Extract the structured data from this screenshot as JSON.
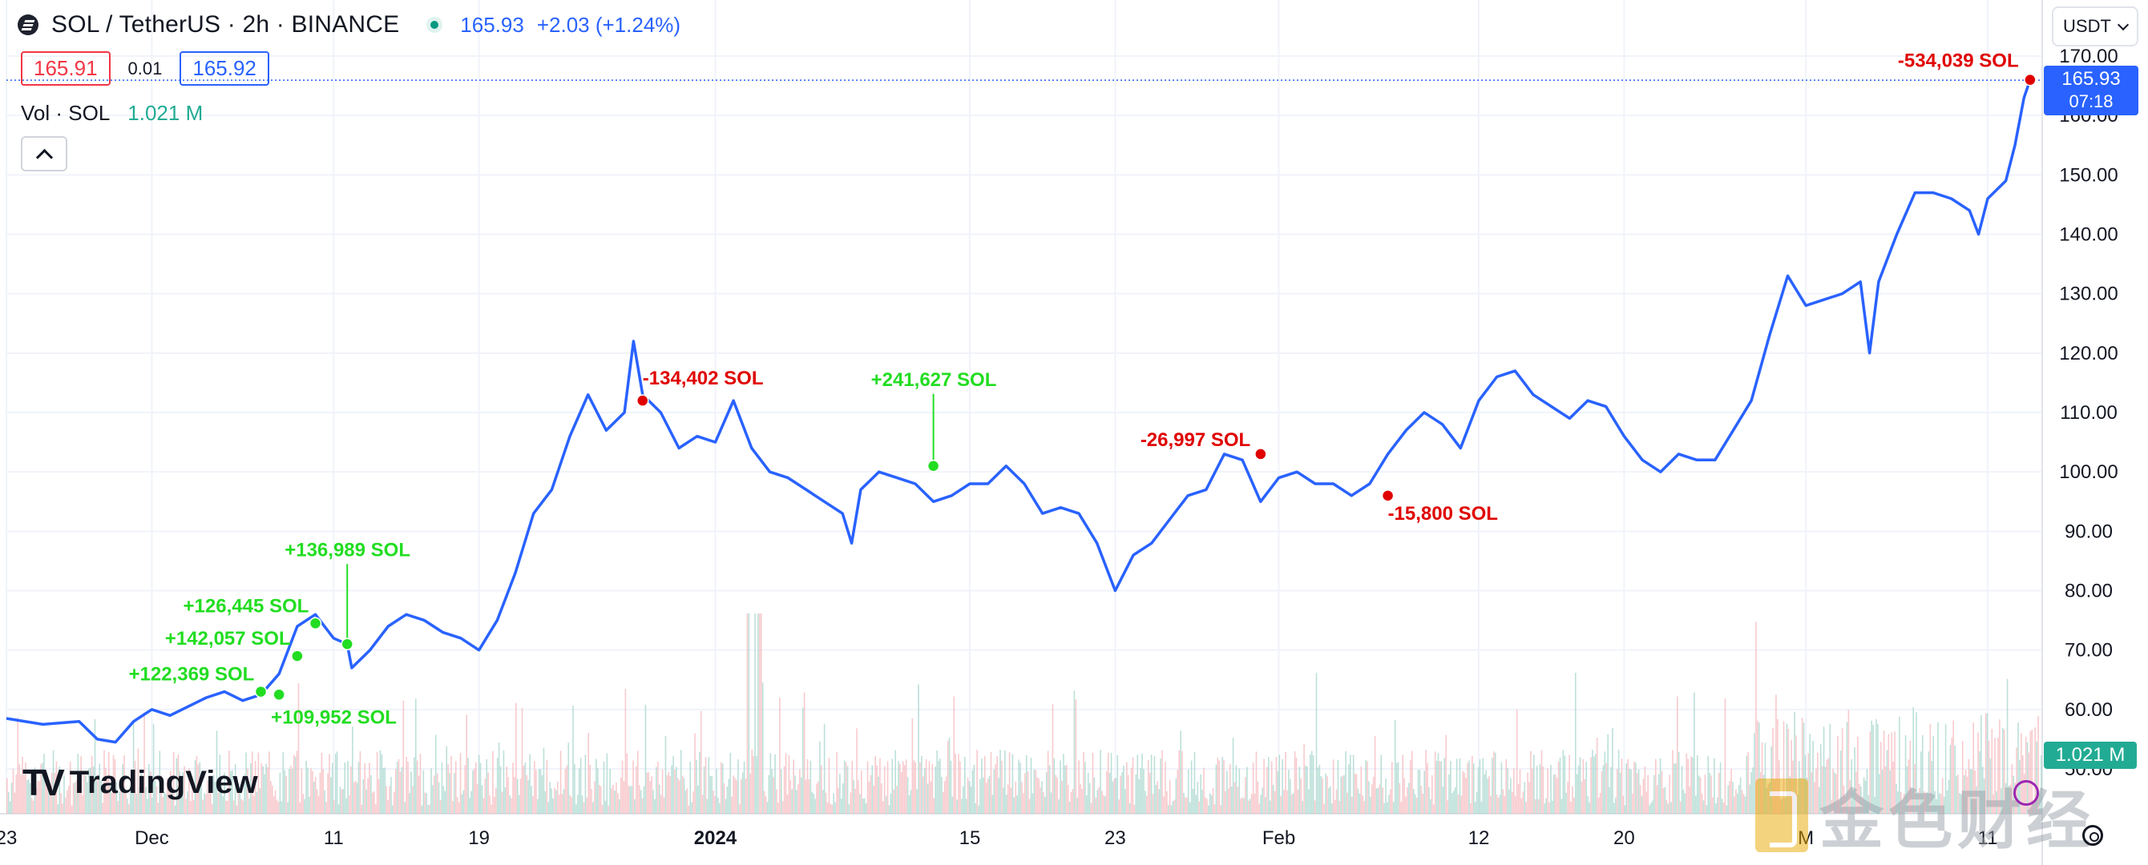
{
  "header": {
    "title": "SOL / TetherUS · 2h · BINANCE",
    "price": "165.93",
    "change": "+2.03 (+1.24%)"
  },
  "quote": {
    "bid": "165.91",
    "spread": "0.01",
    "ask": "165.92"
  },
  "volume_legend": {
    "label": "Vol · SOL",
    "value": "1.021 M"
  },
  "currency": "USDT",
  "price_tag": {
    "price": "165.93",
    "countdown": "07:18"
  },
  "volume_tag": "1.021 M",
  "logo_text": "TradingView",
  "watermark": "金色财经",
  "colors": {
    "line": "#2962ff",
    "buy": "#22dd22",
    "sell": "#e00000",
    "vol_up": "#22ab94",
    "vol_down": "#f23645"
  },
  "chart_data": {
    "type": "line",
    "x_unit": "date",
    "y_axis_ticks": [
      "170.00",
      "160.00",
      "150.00",
      "140.00",
      "130.00",
      "120.00",
      "110.00",
      "100.00",
      "90.00",
      "80.00",
      "70.00",
      "60.00",
      "50.00"
    ],
    "ylim": [
      50,
      170
    ],
    "x_axis_ticks": [
      {
        "label": "23",
        "x": "2023-11-23"
      },
      {
        "label": "Dec",
        "x": "2023-12-01"
      },
      {
        "label": "11",
        "x": "2023-12-11"
      },
      {
        "label": "19",
        "x": "2023-12-19"
      },
      {
        "label": "2024",
        "x": "2024-01-01",
        "bold": true
      },
      {
        "label": "15",
        "x": "2024-01-15"
      },
      {
        "label": "23",
        "x": "2024-01-23"
      },
      {
        "label": "Feb",
        "x": "2024-02-01"
      },
      {
        "label": "12",
        "x": "2024-02-12"
      },
      {
        "label": "20",
        "x": "2024-02-20"
      },
      {
        "label": "M",
        "x": "2024-03-01"
      },
      {
        "label": "11",
        "x": "2024-03-11"
      }
    ],
    "xlim": [
      "2023-11-23",
      "2024-03-14"
    ],
    "series": [
      {
        "values": [
          [
            "2023-11-23",
            58.5
          ],
          [
            "2023-11-25",
            57.5
          ],
          [
            "2023-11-27",
            58
          ],
          [
            "2023-11-28",
            55
          ],
          [
            "2023-11-29",
            54.5
          ],
          [
            "2023-11-30",
            58
          ],
          [
            "2023-12-01",
            60
          ],
          [
            "2023-12-02",
            59
          ],
          [
            "2023-12-04",
            62
          ],
          [
            "2023-12-05",
            63
          ],
          [
            "2023-12-06",
            61.5
          ],
          [
            "2023-12-07",
            62.5
          ],
          [
            "2023-12-08",
            66
          ],
          [
            "2023-12-09",
            74
          ],
          [
            "2023-12-10",
            76
          ],
          [
            "2023-12-11",
            72
          ],
          [
            "2023-12-11T18",
            71
          ],
          [
            "2023-12-12",
            67
          ],
          [
            "2023-12-13",
            70
          ],
          [
            "2023-12-14",
            74
          ],
          [
            "2023-12-15",
            76
          ],
          [
            "2023-12-16",
            75
          ],
          [
            "2023-12-17",
            73
          ],
          [
            "2023-12-18",
            72
          ],
          [
            "2023-12-19",
            70
          ],
          [
            "2023-12-20",
            75
          ],
          [
            "2023-12-21",
            83
          ],
          [
            "2023-12-22",
            93
          ],
          [
            "2023-12-23",
            97
          ],
          [
            "2023-12-24",
            106
          ],
          [
            "2023-12-25",
            113
          ],
          [
            "2023-12-26",
            107
          ],
          [
            "2023-12-27",
            110
          ],
          [
            "2023-12-27T12",
            122
          ],
          [
            "2023-12-28",
            113
          ],
          [
            "2023-12-29",
            110
          ],
          [
            "2023-12-30",
            104
          ],
          [
            "2023-12-31",
            106
          ],
          [
            "2024-01-01",
            105
          ],
          [
            "2024-01-02",
            112
          ],
          [
            "2024-01-03",
            104
          ],
          [
            "2024-01-04",
            100
          ],
          [
            "2024-01-05",
            99
          ],
          [
            "2024-01-06",
            97
          ],
          [
            "2024-01-07",
            95
          ],
          [
            "2024-01-08",
            93
          ],
          [
            "2024-01-08T12",
            88
          ],
          [
            "2024-01-09",
            97
          ],
          [
            "2024-01-10",
            100
          ],
          [
            "2024-01-11",
            99
          ],
          [
            "2024-01-12",
            98
          ],
          [
            "2024-01-13",
            95
          ],
          [
            "2024-01-14",
            96
          ],
          [
            "2024-01-15",
            98
          ],
          [
            "2024-01-16",
            98
          ],
          [
            "2024-01-17",
            101
          ],
          [
            "2024-01-18",
            98
          ],
          [
            "2024-01-19",
            93
          ],
          [
            "2024-01-20",
            94
          ],
          [
            "2024-01-21",
            93
          ],
          [
            "2024-01-22",
            88
          ],
          [
            "2024-01-23",
            80
          ],
          [
            "2024-01-24",
            86
          ],
          [
            "2024-01-25",
            88
          ],
          [
            "2024-01-26",
            92
          ],
          [
            "2024-01-27",
            96
          ],
          [
            "2024-01-28",
            97
          ],
          [
            "2024-01-29",
            103
          ],
          [
            "2024-01-30",
            102
          ],
          [
            "2024-01-31",
            95
          ],
          [
            "2024-02-01",
            99
          ],
          [
            "2024-02-02",
            100
          ],
          [
            "2024-02-03",
            98
          ],
          [
            "2024-02-04",
            98
          ],
          [
            "2024-02-05",
            96
          ],
          [
            "2024-02-06",
            98
          ],
          [
            "2024-02-07",
            103
          ],
          [
            "2024-02-08",
            107
          ],
          [
            "2024-02-09",
            110
          ],
          [
            "2024-02-10",
            108
          ],
          [
            "2024-02-11",
            104
          ],
          [
            "2024-02-12",
            112
          ],
          [
            "2024-02-13",
            116
          ],
          [
            "2024-02-14",
            117
          ],
          [
            "2024-02-15",
            113
          ],
          [
            "2024-02-16",
            111
          ],
          [
            "2024-02-17",
            109
          ],
          [
            "2024-02-18",
            112
          ],
          [
            "2024-02-19",
            111
          ],
          [
            "2024-02-20",
            106
          ],
          [
            "2024-02-21",
            102
          ],
          [
            "2024-02-22",
            100
          ],
          [
            "2024-02-23",
            103
          ],
          [
            "2024-02-24",
            102
          ],
          [
            "2024-02-25",
            102
          ],
          [
            "2024-02-26",
            107
          ],
          [
            "2024-02-27",
            112
          ],
          [
            "2024-02-28",
            123
          ],
          [
            "2024-02-29",
            133
          ],
          [
            "2024-03-01",
            128
          ],
          [
            "2024-03-02",
            129
          ],
          [
            "2024-03-03",
            130
          ],
          [
            "2024-03-04",
            132
          ],
          [
            "2024-03-04T12",
            120
          ],
          [
            "2024-03-05",
            132
          ],
          [
            "2024-03-06",
            140
          ],
          [
            "2024-03-07",
            147
          ],
          [
            "2024-03-08",
            147
          ],
          [
            "2024-03-09",
            146
          ],
          [
            "2024-03-10",
            144
          ],
          [
            "2024-03-10T12",
            140
          ],
          [
            "2024-03-11",
            146
          ],
          [
            "2024-03-12",
            149
          ],
          [
            "2024-03-12T12",
            155
          ],
          [
            "2024-03-13",
            163
          ],
          [
            "2024-03-13T08",
            166
          ]
        ]
      }
    ],
    "trade_markers": [
      {
        "date": "2023-12-07",
        "price": 63,
        "label": "+122,369 SOL",
        "side": "buy"
      },
      {
        "date": "2023-12-08",
        "price": 62.5,
        "label": "+109,952 SOL",
        "side": "buy"
      },
      {
        "date": "2023-12-09",
        "price": 69,
        "label": "+142,057 SOL",
        "side": "buy"
      },
      {
        "date": "2023-12-10",
        "price": 74.5,
        "label": "+126,445 SOL",
        "side": "buy"
      },
      {
        "date": "2023-12-11T18",
        "price": 71,
        "label": "+136,989 SOL",
        "side": "buy"
      },
      {
        "date": "2023-12-28",
        "price": 112,
        "label": "-134,402 SOL",
        "side": "sell"
      },
      {
        "date": "2024-01-13",
        "price": 101,
        "label": "+241,627 SOL",
        "side": "buy"
      },
      {
        "date": "2024-01-31",
        "price": 103,
        "label": "-26,997 SOL",
        "side": "sell"
      },
      {
        "date": "2024-02-07",
        "price": 96,
        "label": "-15,800 SOL",
        "side": "sell"
      },
      {
        "date": "2024-03-13T08",
        "price": 166,
        "label": "-534,039 SOL",
        "side": "sell"
      }
    ],
    "current_price": 165.93
  }
}
